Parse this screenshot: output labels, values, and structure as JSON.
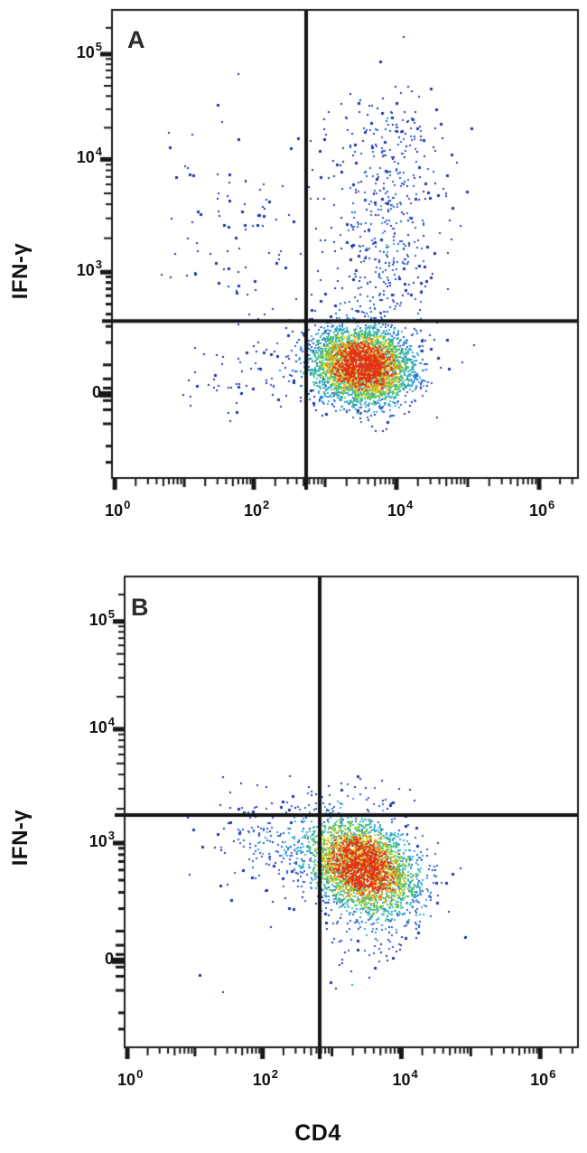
{
  "figure": {
    "xlabel": "CD4",
    "ylabel": "IFN-γ",
    "description": "Two-panel flow cytometry pseudocolor density dot plots with quadrant gates",
    "axis_scale": "biexponential (logicle) log scale",
    "colors": {
      "background": "#ffffff",
      "frame": "#1c1c1c",
      "gate": "#141414",
      "text": "#111111",
      "density_ramp": [
        "#2136a6",
        "#2b5ad2",
        "#2ea8d8",
        "#3bbf9b",
        "#63c73a",
        "#d8d922",
        "#f2911c",
        "#e3321a"
      ]
    }
  },
  "chart_data": [
    {
      "type": "scatter",
      "subtype": "flow-cytometry-density",
      "panel_label": "A",
      "xlabel": "CD4",
      "ylabel": "IFN-γ",
      "x_ticks": [
        {
          "base": "10",
          "exp": "0",
          "value": 1,
          "frac": 0.008
        },
        {
          "base": "10",
          "exp": "2",
          "value": 100,
          "frac": 0.305
        },
        {
          "base": "10",
          "exp": "4",
          "value": 10000,
          "frac": 0.612
        },
        {
          "base": "10",
          "exp": "6",
          "value": 1000000,
          "frac": 0.915
        }
      ],
      "y_ticks": [
        {
          "base": "10",
          "exp": "5",
          "value": 100000,
          "frac": 0.096
        },
        {
          "base": "10",
          "exp": "4",
          "value": 10000,
          "frac": 0.32
        },
        {
          "base": "10",
          "exp": "3",
          "value": 1000,
          "frac": 0.56
        },
        {
          "base": "0",
          "exp": "",
          "value": 0,
          "frac": 0.82
        }
      ],
      "gates": {
        "x_frac": 0.417,
        "y_frac": 0.664,
        "x_value_approx": 540,
        "y_value_approx": 350
      },
      "populations": [
        {
          "name": "CD4+ IFN-g-neg main population",
          "type": "gauss",
          "count": 3800,
          "center_frac": [
            0.535,
            0.757
          ],
          "sigma_frac": [
            0.053,
            0.041
          ],
          "rho": 0.1,
          "center_value_approx": [
            3200,
            100
          ]
        },
        {
          "name": "CD4+ IFN-g+ column",
          "type": "gauss",
          "count": 430,
          "center_frac": [
            0.585,
            0.48
          ],
          "sigma_frac": [
            0.062,
            0.13
          ],
          "rho": 0,
          "center_value_approx": [
            6600,
            2100
          ]
        },
        {
          "name": "CD4+ IFN-g+ high events",
          "type": "gauss",
          "count": 90,
          "center_frac": [
            0.585,
            0.3
          ],
          "sigma_frac": [
            0.07,
            0.055
          ],
          "rho": 0,
          "center_value_approx": [
            6600,
            12000
          ]
        },
        {
          "name": "CD4-neg IFN-g+ scatter",
          "type": "gauss",
          "count": 90,
          "center_frac": [
            0.27,
            0.46
          ],
          "sigma_frac": [
            0.09,
            0.11
          ],
          "rho": 0,
          "center_value_approx": [
            58,
            2600
          ]
        },
        {
          "name": "CD4-neg IFN-g-neg scatter",
          "type": "gauss",
          "count": 75,
          "center_frac": [
            0.315,
            0.775
          ],
          "sigma_frac": [
            0.07,
            0.05
          ],
          "rho": 0,
          "center_value_approx": [
            110,
            75
          ]
        },
        {
          "name": "sparse outliers",
          "type": "uniform",
          "count": 22,
          "x_range": [
            0.08,
            0.78
          ],
          "y_range": [
            0.22,
            0.92
          ]
        }
      ]
    },
    {
      "type": "scatter",
      "subtype": "flow-cytometry-density",
      "panel_label": "B",
      "xlabel": "CD4",
      "ylabel": "IFN-γ",
      "x_ticks": [
        {
          "base": "10",
          "exp": "0",
          "value": 1,
          "frac": 0.008
        },
        {
          "base": "10",
          "exp": "2",
          "value": 100,
          "frac": 0.305
        },
        {
          "base": "10",
          "exp": "4",
          "value": 10000,
          "frac": 0.612
        },
        {
          "base": "10",
          "exp": "6",
          "value": 1000000,
          "frac": 0.915
        }
      ],
      "y_ticks": [
        {
          "base": "10",
          "exp": "5",
          "value": 100000,
          "frac": 0.097
        },
        {
          "base": "10",
          "exp": "4",
          "value": 10000,
          "frac": 0.325
        },
        {
          "base": "10",
          "exp": "3",
          "value": 1000,
          "frac": 0.566
        },
        {
          "base": "0",
          "exp": "",
          "value": 0,
          "frac": 0.815
        }
      ],
      "gates": {
        "x_frac": 0.4306,
        "y_frac": 0.5067,
        "x_value_approx": 660,
        "y_value_approx": 1700
      },
      "populations": [
        {
          "name": "CD4+ IFN-g+ main population",
          "type": "gauss",
          "count": 3400,
          "center_frac": [
            0.522,
            0.614
          ],
          "sigma_frac": [
            0.06,
            0.05
          ],
          "rho": 0.3,
          "center_value_approx": [
            2650,
            600
          ]
        },
        {
          "name": "CD4-neg scatter left of gate",
          "type": "gauss",
          "count": 170,
          "center_frac": [
            0.33,
            0.565
          ],
          "sigma_frac": [
            0.078,
            0.052
          ],
          "rho": 0.1,
          "center_value_approx": [
            145,
            950
          ]
        },
        {
          "name": "above-gate scatter",
          "type": "gauss",
          "count": 30,
          "center_frac": [
            0.5,
            0.468
          ],
          "sigma_frac": [
            0.07,
            0.022
          ],
          "rho": 0,
          "center_value_approx": [
            1900,
            2500
          ]
        },
        {
          "name": "low tail below population",
          "type": "gauss",
          "count": 90,
          "center_frac": [
            0.545,
            0.73
          ],
          "sigma_frac": [
            0.05,
            0.055
          ],
          "rho": 0,
          "center_value_approx": [
            3600,
            150
          ]
        },
        {
          "name": "sparse outliers",
          "type": "uniform",
          "count": 12,
          "x_range": [
            0.1,
            0.7
          ],
          "y_range": [
            0.4,
            0.88
          ]
        }
      ]
    }
  ]
}
